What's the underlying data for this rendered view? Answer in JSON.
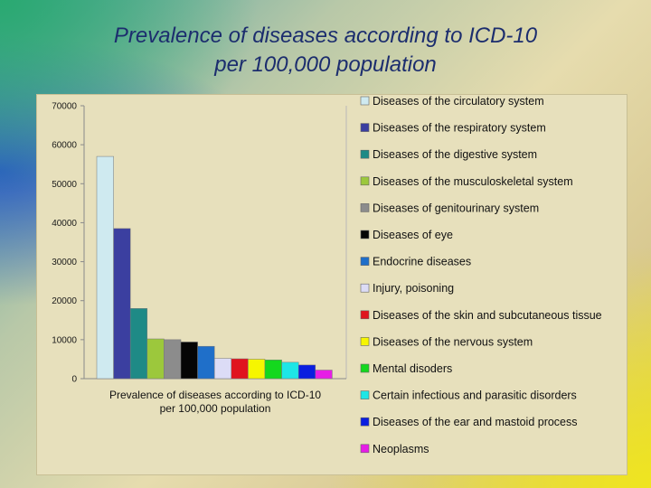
{
  "title": {
    "line1": "Prevalence of diseases according to ICD-10",
    "line2": "per 100,000 population"
  },
  "chart_data": {
    "type": "bar",
    "x_category_label_lines": [
      "Prevalence of diseases according to ICD-10",
      "per 100,000 population"
    ],
    "ylim": [
      0,
      70000
    ],
    "yticks": [
      0,
      10000,
      20000,
      30000,
      40000,
      50000,
      60000,
      70000
    ],
    "grid": false,
    "legend_placement": "right",
    "series": [
      {
        "name": "Diseases of the circulatory system",
        "value": 57000,
        "color": "#cfeaf0"
      },
      {
        "name": "Diseases of the respiratory system",
        "value": 38500,
        "color": "#3b3fa0"
      },
      {
        "name": "Diseases of the digestive system",
        "value": 18000,
        "color": "#1e8a86"
      },
      {
        "name": "Diseases of the musculoskeletal system",
        "value": 10200,
        "color": "#9cc83c"
      },
      {
        "name": "Diseases of genitourinary system",
        "value": 10000,
        "color": "#8c8c8c"
      },
      {
        "name": "Diseases of eye",
        "value": 9400,
        "color": "#050505"
      },
      {
        "name": "Endocrine diseases",
        "value": 8300,
        "color": "#1f6fc9"
      },
      {
        "name": "Injury, poisoning",
        "value": 5200,
        "color": "#dcdcf6"
      },
      {
        "name": "Diseases of the skin and subcutaneous tissue",
        "value": 5100,
        "color": "#e0141e"
      },
      {
        "name": "Diseases of the nervous system",
        "value": 5000,
        "color": "#f6f600"
      },
      {
        "name": "Mental disoders",
        "value": 4800,
        "color": "#14d81e"
      },
      {
        "name": "Certain infectious and parasitic disorders",
        "value": 4200,
        "color": "#1ee6e6"
      },
      {
        "name": "Diseases of the ear and mastoid process",
        "value": 3500,
        "color": "#0a1ee0"
      },
      {
        "name": "Neoplasms",
        "value": 2200,
        "color": "#e61ee6"
      }
    ]
  }
}
